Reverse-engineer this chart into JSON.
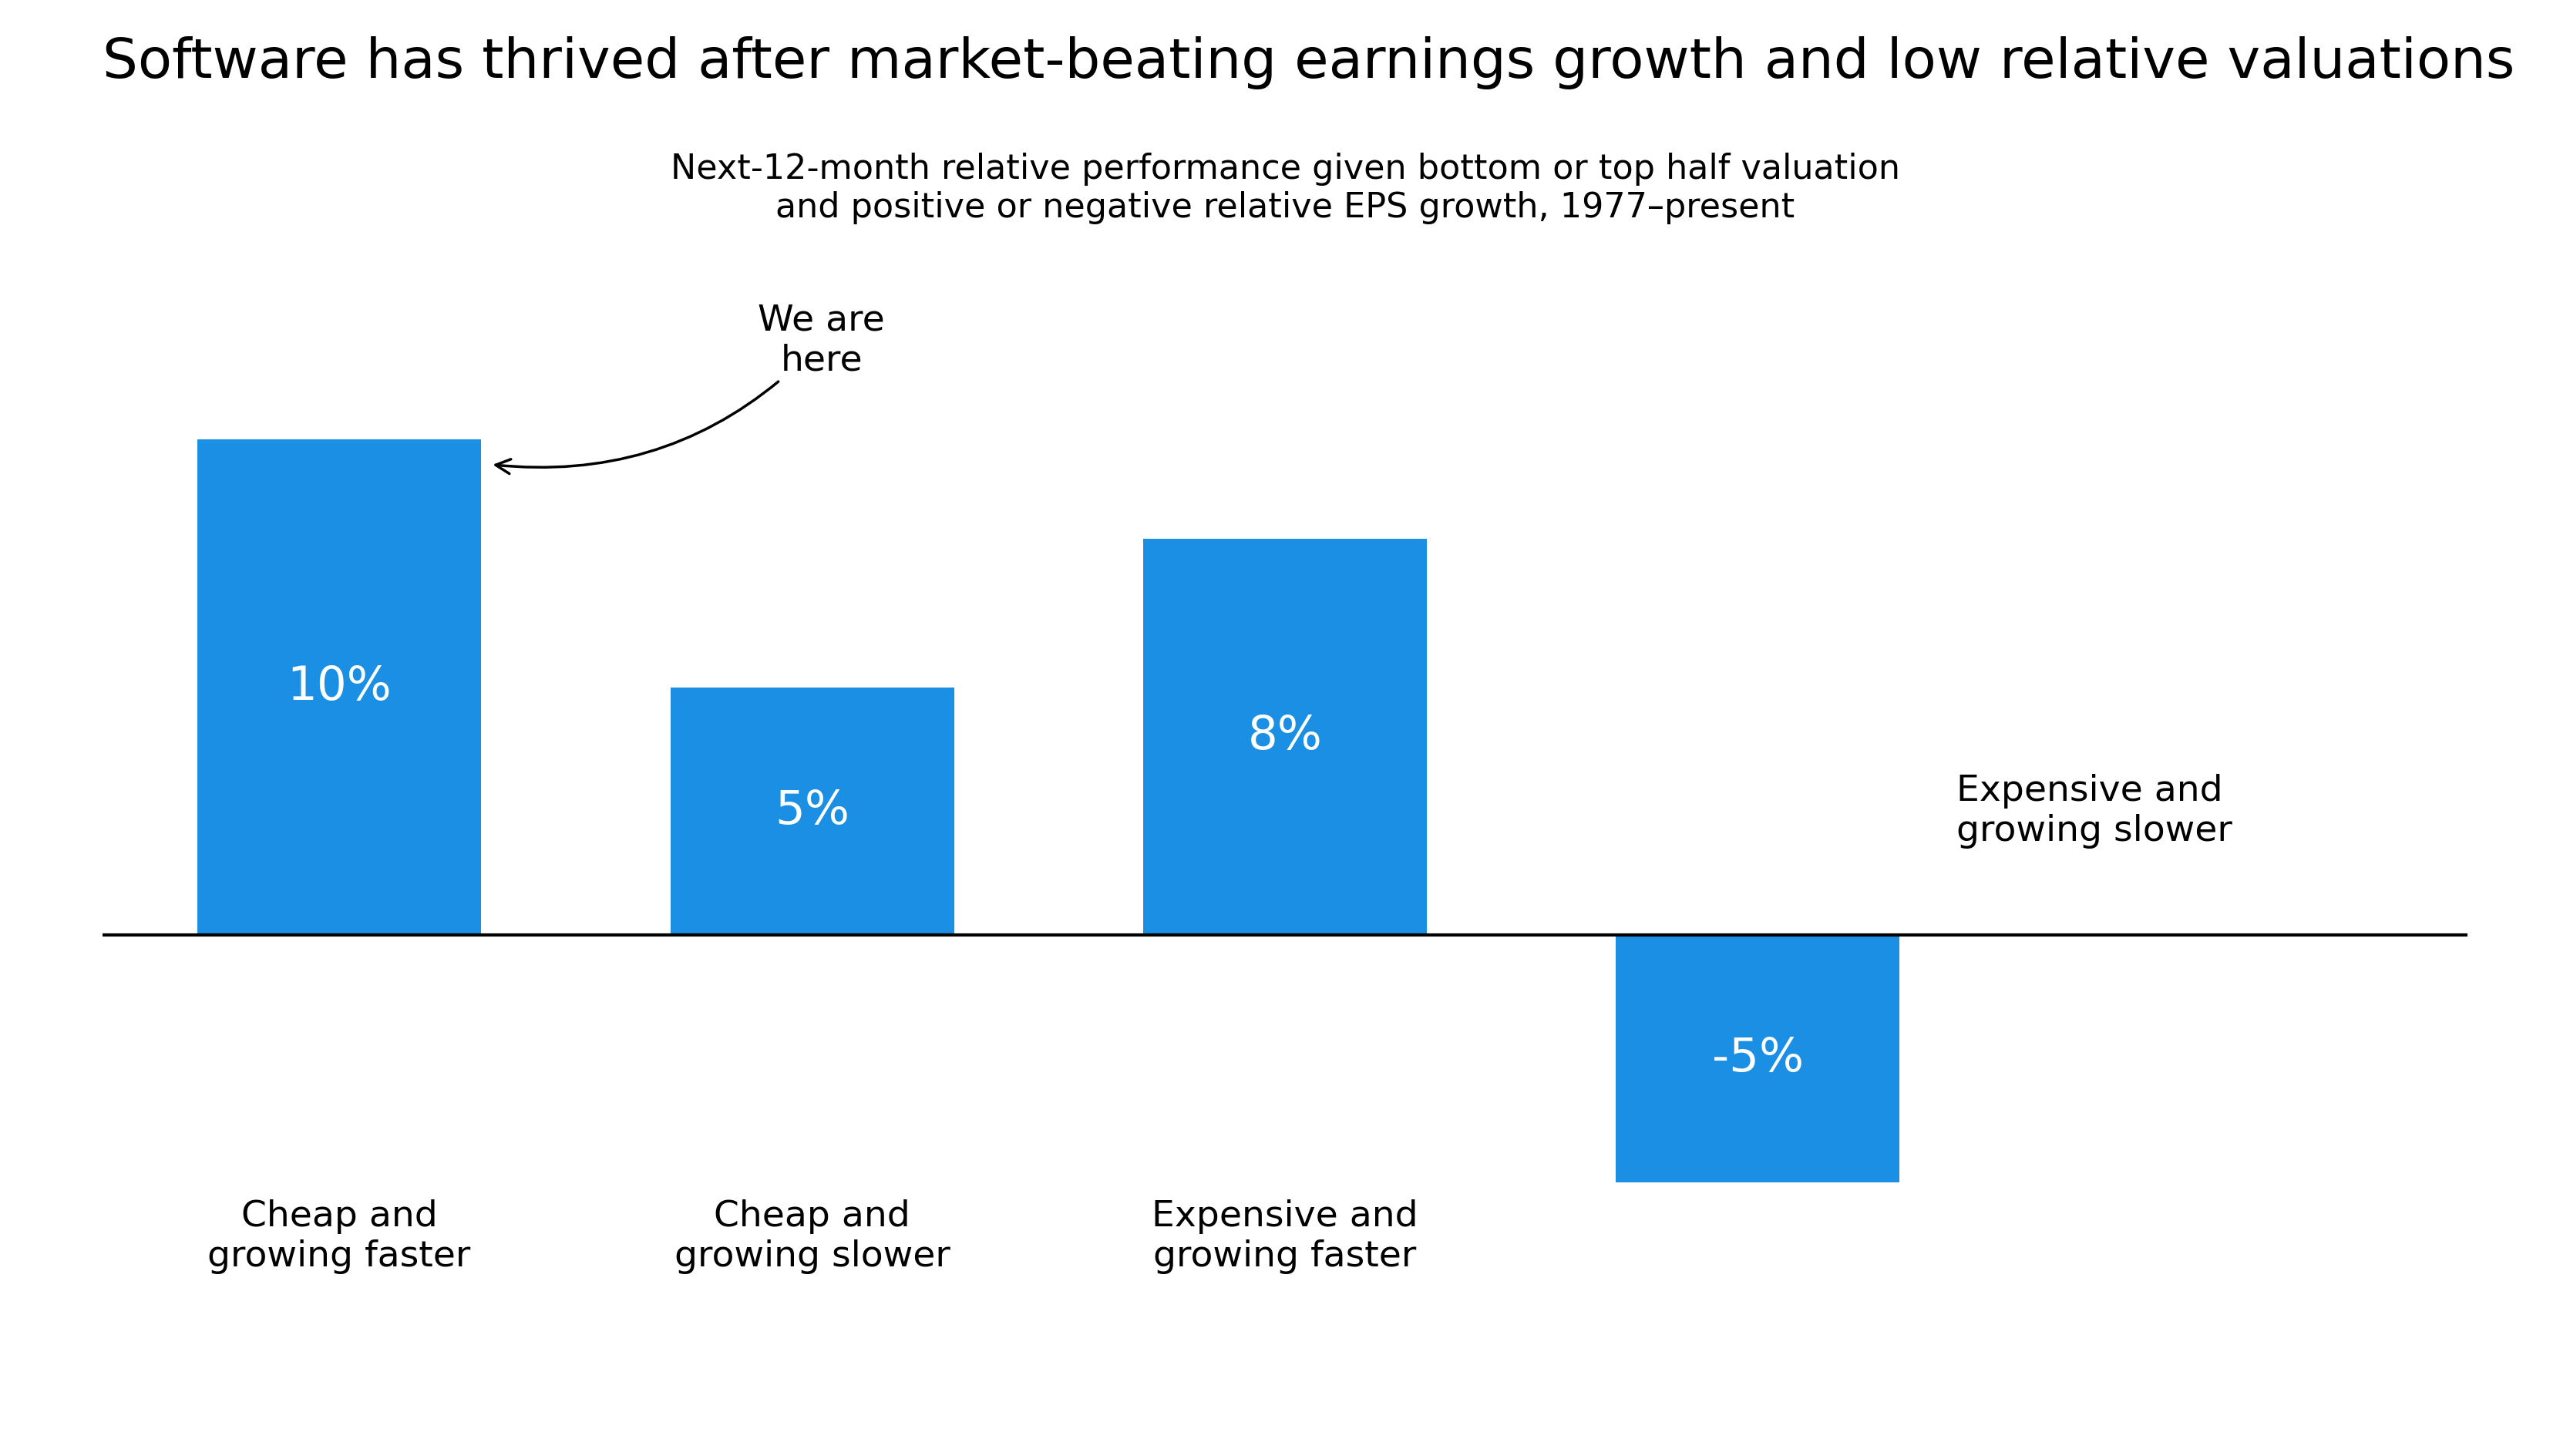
{
  "title": "Software has thrived after market-beating earnings growth and low relative valuations",
  "subtitle": "Next-12-month relative performance given bottom or top half valuation\nand positive or negative relative EPS growth, 1977–present",
  "categories": [
    "Cheap and\ngrowing faster",
    "Cheap and\ngrowing slower",
    "Expensive and\ngrowing faster",
    "Expensive and\ngrowing slower"
  ],
  "values": [
    10,
    5,
    8,
    -5
  ],
  "bar_color": "#1a8fe3",
  "title_fontsize": 52,
  "subtitle_fontsize": 32,
  "bar_label_fontsize": 44,
  "tick_label_fontsize": 34,
  "annotation_fontsize": 34,
  "background_color": "#ffffff",
  "text_color": "#000000",
  "bar_text_color": "#ffffff",
  "annotation_text": "We are\nhere",
  "ylim": [
    -7,
    13
  ],
  "xlim": [
    -0.5,
    4.5
  ],
  "bar_width": 0.6,
  "figsize": [
    33.34,
    18.89
  ]
}
